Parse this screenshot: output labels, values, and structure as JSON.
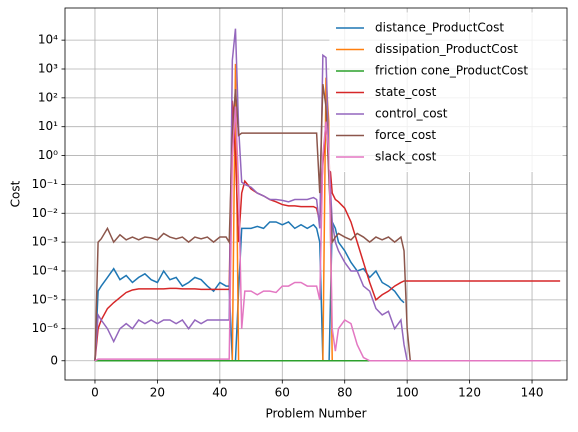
{
  "chart_data": {
    "type": "line",
    "xlabel": "Problem Number",
    "ylabel": "Cost",
    "yscale": "symlog",
    "linthresh": 1e-06,
    "grid": true,
    "legend": "upper right",
    "xlim": [
      -9.6,
      151.2
    ],
    "xticks": [
      0,
      20,
      40,
      60,
      80,
      100,
      120,
      140
    ],
    "ylim": [
      -6e-07,
      130000
    ],
    "yticks": [
      0,
      {
        "value": 1e-06,
        "label": "10⁻⁶"
      },
      {
        "value": 1e-05,
        "label": "10⁻⁵"
      },
      {
        "value": 0.0001,
        "label": "10⁻⁴"
      },
      {
        "value": 0.001,
        "label": "10⁻³"
      },
      {
        "value": 0.01,
        "label": "10⁻²"
      },
      {
        "value": 0.1,
        "label": "10⁻¹"
      },
      {
        "value": 1,
        "label": "10⁰"
      },
      {
        "value": 10,
        "label": "10¹"
      },
      {
        "value": 100,
        "label": "10²"
      },
      {
        "value": 1000,
        "label": "10³"
      },
      {
        "value": 10000,
        "label": "10⁴"
      }
    ],
    "x": [
      0,
      1,
      2,
      4,
      6,
      8,
      10,
      12,
      14,
      16,
      18,
      20,
      22,
      24,
      26,
      28,
      30,
      32,
      34,
      36,
      38,
      40,
      42,
      43,
      44,
      45,
      46,
      47,
      48,
      50,
      52,
      54,
      56,
      58,
      60,
      62,
      64,
      66,
      68,
      70,
      71,
      72,
      73,
      74,
      75,
      76,
      77,
      78,
      80,
      82,
      84,
      86,
      88,
      90,
      92,
      94,
      96,
      98,
      99,
      100,
      101,
      102,
      110,
      120,
      130,
      140,
      149
    ],
    "series": [
      {
        "name": "distance_ProductCost",
        "color": "#1f77b4",
        "values": [
          0,
          2e-05,
          3e-05,
          6e-05,
          0.00012,
          5e-05,
          7e-05,
          4e-05,
          6e-05,
          8e-05,
          5e-05,
          4e-05,
          0.0001,
          5e-05,
          6e-05,
          3e-05,
          4e-05,
          6e-05,
          5e-05,
          3e-05,
          2e-05,
          4e-05,
          3e-05,
          3e-05,
          0,
          0,
          2e-05,
          0.003,
          0.003,
          0.003,
          0.0035,
          0.003,
          0.005,
          0.005,
          0.004,
          0.005,
          0.003,
          0.004,
          0.003,
          0.004,
          0.003,
          0.001,
          0,
          0,
          0,
          0.005,
          0.003,
          0.001,
          0.0005,
          0.0002,
          0.0001,
          0.00012,
          6e-05,
          0.0001,
          4e-05,
          3e-05,
          2e-05,
          1e-05,
          8e-06,
          null,
          null,
          null,
          null,
          null,
          null,
          null,
          null
        ]
      },
      {
        "name": "dissipation_ProductCost",
        "color": "#ff7f0e",
        "values": [
          0,
          0,
          0,
          0,
          0,
          0,
          0,
          0,
          0,
          0,
          0,
          0,
          0,
          0,
          0,
          0,
          0,
          0,
          0,
          0,
          0,
          0,
          0,
          0,
          0,
          1500,
          0,
          0,
          0,
          0,
          0,
          0,
          0,
          0,
          0,
          0,
          0,
          0,
          0,
          0,
          0,
          0,
          0,
          500,
          10,
          0,
          0,
          0,
          0,
          0,
          0,
          0,
          0,
          0,
          0,
          0,
          0,
          0,
          0,
          0,
          0,
          0,
          0,
          0,
          0,
          0,
          0
        ]
      },
      {
        "name": "friction cone_ProductCost",
        "color": "#2ca02c",
        "values": [
          0,
          0,
          0,
          0,
          0,
          0,
          0,
          0,
          0,
          0,
          0,
          0,
          0,
          0,
          0,
          0,
          0,
          0,
          0,
          0,
          0,
          0,
          0,
          0,
          0,
          0,
          0,
          0,
          0,
          0,
          0,
          0,
          0,
          0,
          0,
          0,
          0,
          0,
          0,
          0,
          0,
          0,
          0,
          0,
          0,
          0,
          0,
          0,
          0,
          0,
          0,
          0,
          0,
          0,
          0,
          0,
          0,
          0,
          0,
          0,
          0,
          0,
          0,
          0,
          0,
          0,
          0
        ]
      },
      {
        "name": "state_cost",
        "color": "#d62728",
        "values": [
          0,
          1e-06,
          2e-06,
          5e-06,
          8e-06,
          1.2e-05,
          1.8e-05,
          2.2e-05,
          2.4e-05,
          2.4e-05,
          2.4e-05,
          2.4e-05,
          2.4e-05,
          2.5e-05,
          2.5e-05,
          2.4e-05,
          2.4e-05,
          2.4e-05,
          2.3e-05,
          2.3e-05,
          2.3e-05,
          2.3e-05,
          2.3e-05,
          2.3e-05,
          80,
          1,
          0.001,
          0.05,
          0.13,
          0.07,
          0.05,
          0.04,
          0.03,
          0.025,
          0.02,
          0.018,
          0.018,
          0.017,
          0.017,
          0.017,
          0.015,
          0.005,
          0.5,
          15,
          1,
          0.05,
          0.03,
          0.025,
          0.015,
          0.005,
          0.001,
          0.0002,
          4e-05,
          1e-05,
          1.5e-05,
          2e-05,
          3e-05,
          4e-05,
          4.5e-05,
          4.5e-05,
          4.5e-05,
          4.5e-05,
          4.5e-05,
          4.5e-05,
          4.5e-05,
          4.5e-05,
          4.5e-05
        ]
      },
      {
        "name": "control_cost",
        "color": "#9467bd",
        "values": [
          0,
          3e-06,
          2e-06,
          1e-06,
          6e-07,
          1e-06,
          1.5e-06,
          1e-06,
          2e-06,
          1.5e-06,
          2e-06,
          1.5e-06,
          2e-06,
          2e-06,
          1.5e-06,
          2e-06,
          1e-06,
          2e-06,
          1.5e-06,
          2e-06,
          2e-06,
          2e-06,
          2e-06,
          2e-06,
          2000,
          25000,
          10,
          0.12,
          0.1,
          0.08,
          0.05,
          0.04,
          0.03,
          0.03,
          0.028,
          0.025,
          0.03,
          0.03,
          0.03,
          0.035,
          0.03,
          0.003,
          3000,
          2500,
          0.5,
          0.005,
          0.001,
          0.0005,
          0.0002,
          0.0001,
          0.0001,
          3e-05,
          2e-05,
          5e-06,
          3e-06,
          4e-06,
          1e-06,
          2e-06,
          5e-07,
          0,
          null,
          null,
          null,
          null,
          null,
          null,
          null
        ]
      },
      {
        "name": "force_cost",
        "color": "#8c564b",
        "values": [
          0,
          0.001,
          0.0013,
          0.003,
          0.001,
          0.0018,
          0.0012,
          0.0015,
          0.0012,
          0.0015,
          0.0014,
          0.0012,
          0.002,
          0.0015,
          0.0013,
          0.0015,
          0.001,
          0.0015,
          0.0013,
          0.0015,
          0.001,
          0.0015,
          0.0015,
          0.001,
          5,
          200,
          5,
          6,
          6,
          6,
          6,
          6,
          6,
          6,
          6,
          6,
          6,
          6,
          6,
          6,
          6,
          0.05,
          300,
          50,
          0.1,
          0.001,
          0.0015,
          0.002,
          0.0015,
          0.0012,
          0.002,
          0.0015,
          0.001,
          0.0015,
          0.0012,
          0.0015,
          0.001,
          0.0015,
          0.0005,
          1e-06,
          0,
          0,
          0,
          0,
          0,
          0,
          0
        ]
      },
      {
        "name": "slack_cost",
        "color": "#e377c2",
        "values": [
          0,
          5e-08,
          5e-08,
          5e-08,
          5e-08,
          5e-08,
          5e-08,
          5e-08,
          5e-08,
          5e-08,
          5e-08,
          5e-08,
          5e-08,
          5e-08,
          5e-08,
          5e-08,
          5e-08,
          5e-08,
          5e-08,
          5e-08,
          5e-08,
          5e-08,
          5e-08,
          5e-08,
          1,
          50,
          0.1,
          1e-06,
          2e-05,
          2e-05,
          1.5e-05,
          2e-05,
          2e-05,
          1.8e-05,
          3e-05,
          3e-05,
          4e-05,
          4e-05,
          3e-05,
          3e-05,
          3e-05,
          1e-05,
          1,
          15,
          1,
          1e-06,
          3e-07,
          1e-06,
          2e-06,
          1.5e-06,
          5e-07,
          1e-07,
          0,
          0,
          0,
          0,
          0,
          0,
          0,
          0,
          0,
          0,
          0,
          0,
          0,
          0,
          0
        ]
      }
    ]
  }
}
